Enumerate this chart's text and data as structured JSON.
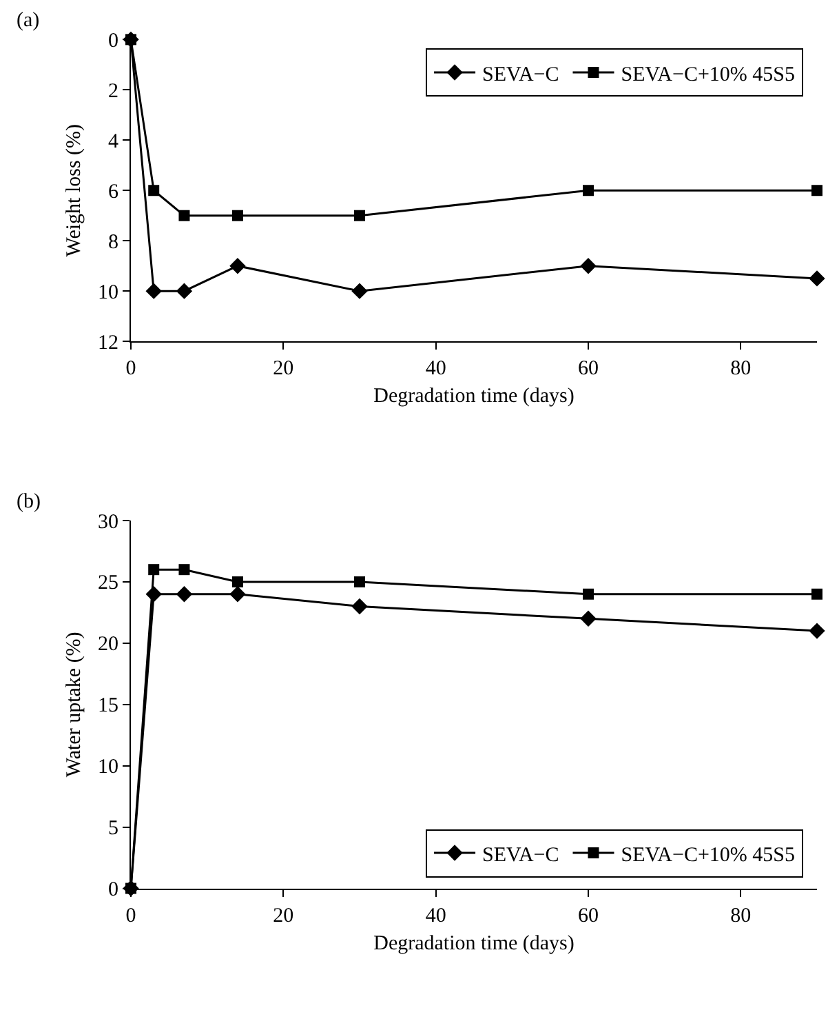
{
  "chart_data": [
    {
      "type": "line",
      "title": "(a)",
      "xlabel": "Degradation time (days)",
      "ylabel": "Weight loss (%)",
      "x": [
        0,
        3,
        7,
        14,
        30,
        60,
        90
      ],
      "xlim": [
        0,
        90
      ],
      "xticks": [
        0,
        20,
        40,
        60,
        80
      ],
      "ylim": [
        12,
        0
      ],
      "yticks": [
        0,
        2,
        4,
        6,
        8,
        10,
        12
      ],
      "legend": "top right",
      "line_style": "solid",
      "series": [
        {
          "name": "SEVA−C",
          "color": "#000000",
          "marker": "diamond",
          "values": [
            0,
            10,
            10,
            9,
            10,
            9,
            9.5
          ]
        },
        {
          "name": "SEVA−C+10% 45S5",
          "color": "#000000",
          "marker": "square",
          "values": [
            0,
            6,
            7,
            7,
            7,
            6,
            6
          ]
        }
      ]
    },
    {
      "type": "line",
      "title": "(b)",
      "xlabel": "Degradation time (days)",
      "ylabel": "Water uptake (%)",
      "x": [
        0,
        3,
        7,
        14,
        30,
        60,
        90
      ],
      "xlim": [
        0,
        90
      ],
      "xticks": [
        0,
        20,
        40,
        60,
        80
      ],
      "ylim": [
        0,
        30
      ],
      "yticks": [
        0,
        5,
        10,
        15,
        20,
        25,
        30
      ],
      "legend": "bottom right",
      "line_style": "solid",
      "series": [
        {
          "name": "SEVA−C",
          "color": "#000000",
          "marker": "diamond",
          "values": [
            0,
            24,
            24,
            24,
            23,
            22,
            21
          ]
        },
        {
          "name": "SEVA−C+10% 45S5",
          "color": "#000000",
          "marker": "square",
          "values": [
            0,
            26,
            26,
            25,
            25,
            24,
            24
          ]
        }
      ]
    }
  ]
}
